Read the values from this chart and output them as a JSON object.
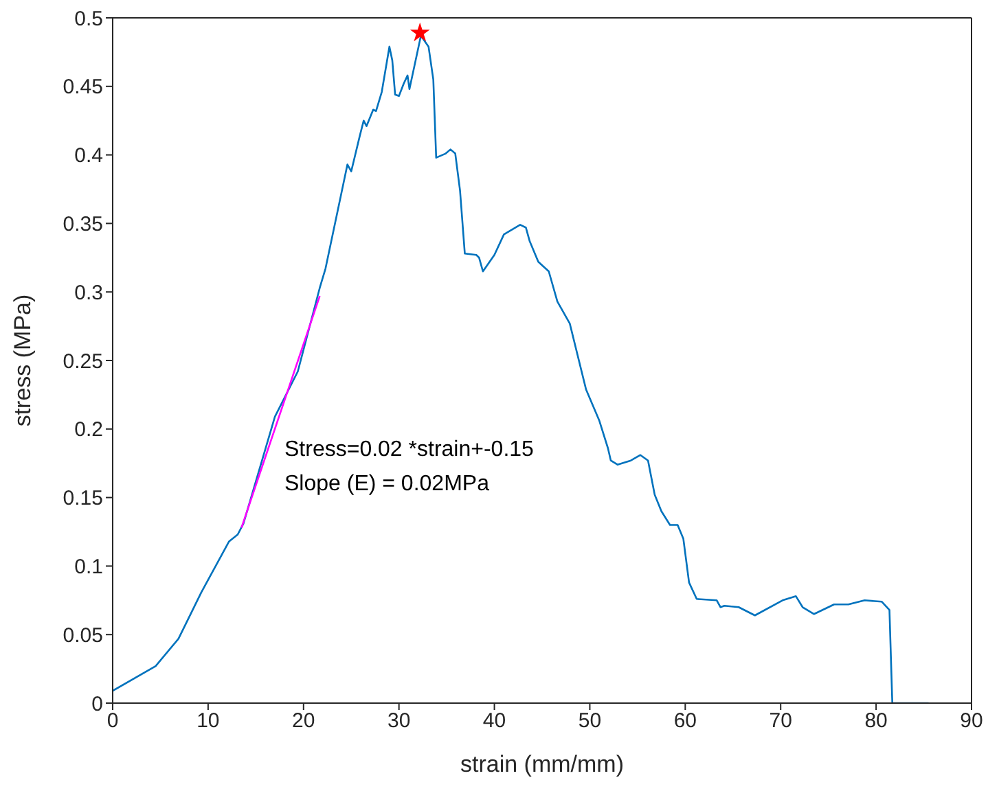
{
  "chart_data": {
    "type": "line",
    "xlabel": "strain (mm/mm)",
    "ylabel": "stress (MPa)",
    "xlim": [
      0,
      90
    ],
    "xticks": [
      0,
      10,
      20,
      30,
      40,
      50,
      60,
      70,
      80,
      90
    ],
    "ylim": [
      0,
      0.5
    ],
    "yticks": [
      0,
      0.05,
      0.1,
      0.15,
      0.2,
      0.25,
      0.3,
      0.35,
      0.4,
      0.45,
      0.5
    ],
    "grid": false,
    "marker": "none",
    "series": [
      {
        "color": "#0072bd",
        "x": [
          0,
          4.5,
          6.9,
          9.3,
          12.2,
          13.1,
          13.7,
          17,
          19.4,
          21.7,
          22.3,
          24.6,
          25,
          25.9,
          26.3,
          26.6,
          27.3,
          27.6,
          28.2,
          29,
          29.3,
          29.6,
          30,
          30.5,
          30.9,
          31.1,
          32.3,
          33.1,
          33.6,
          33.9,
          34.9,
          35.4,
          35.9,
          36.4,
          36.9,
          38.1,
          38.4,
          38.8,
          40,
          41,
          42.7,
          43.3,
          43.7,
          44.6,
          45.7,
          46.6,
          47.9,
          49.6,
          51,
          51.9,
          52.2,
          52.9,
          54.3,
          55.3,
          56.1,
          56.8,
          57.5,
          58.4,
          59.2,
          59.8,
          60.4,
          61.2,
          63.3,
          63.7,
          64.1,
          65.6,
          67.3,
          70.2,
          71.6,
          72.3,
          73.5,
          75.6,
          77.1,
          78.8,
          80.6,
          81.4,
          81.7,
          85.5
        ],
        "values": [
          0.009,
          0.027,
          0.047,
          0.081,
          0.118,
          0.123,
          0.131,
          0.209,
          0.242,
          0.303,
          0.317,
          0.393,
          0.388,
          0.414,
          0.425,
          0.421,
          0.433,
          0.432,
          0.446,
          0.479,
          0.469,
          0.444,
          0.443,
          0.452,
          0.458,
          0.448,
          0.487,
          0.479,
          0.455,
          0.398,
          0.401,
          0.404,
          0.401,
          0.374,
          0.328,
          0.327,
          0.325,
          0.315,
          0.327,
          0.342,
          0.349,
          0.347,
          0.337,
          0.322,
          0.315,
          0.293,
          0.277,
          0.229,
          0.206,
          0.186,
          0.177,
          0.174,
          0.177,
          0.181,
          0.177,
          0.152,
          0.14,
          0.13,
          0.13,
          0.12,
          0.088,
          0.076,
          0.075,
          0.07,
          0.071,
          0.07,
          0.064,
          0.075,
          0.078,
          0.07,
          0.065,
          0.072,
          0.072,
          0.075,
          0.074,
          0.068,
          0,
          0
        ]
      },
      {
        "color": "#ff00ff",
        "x": [
          13.5,
          21.7
        ],
        "values": [
          0.128,
          0.297
        ]
      },
      {
        "type": "scatter",
        "marker": "star",
        "color": "#ff0000",
        "x": [
          32.2
        ],
        "values": [
          0.489
        ]
      }
    ],
    "annotations": [
      "Stress=0.02 *strain+-0.15",
      "Slope (E) = 0.02MPa"
    ]
  }
}
